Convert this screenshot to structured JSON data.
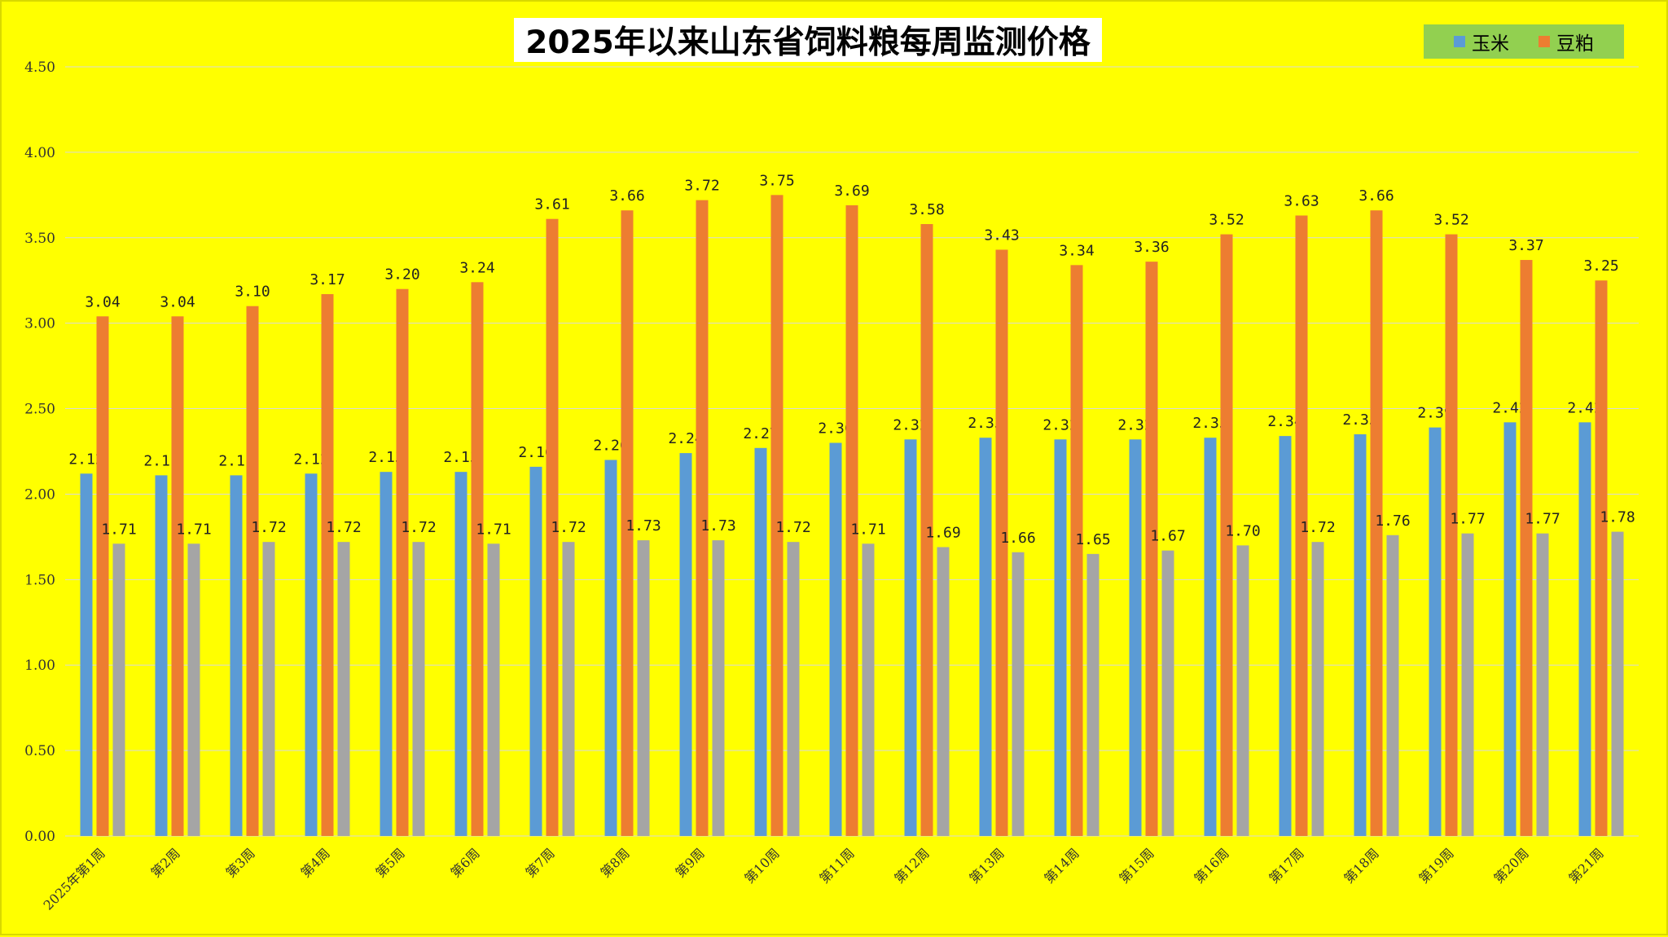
{
  "chart_data": {
    "type": "bar",
    "title": "2025年以来山东省饲料粮每周监测价格",
    "xlabel": "",
    "ylabel": "",
    "ylim": [
      0,
      4.5
    ],
    "yticks": [
      "0.00",
      "0.50",
      "1.00",
      "1.50",
      "2.00",
      "2.50",
      "3.00",
      "3.50",
      "4.00",
      "4.50"
    ],
    "grid": true,
    "legend_position": "top-right",
    "categories": [
      "2025年第1周",
      "第2周",
      "第3周",
      "第4周",
      "第5周",
      "第6周",
      "第7周",
      "第8周",
      "第9周",
      "第10周",
      "第11周",
      "第12周",
      "第13周",
      "第14周",
      "第15周",
      "第16周",
      "第17周",
      "第18周",
      "第19周",
      "第20周",
      "第21周"
    ],
    "series": [
      {
        "name": "玉米",
        "color": "#5b9bd5",
        "values": [
          2.12,
          2.11,
          2.11,
          2.12,
          2.13,
          2.13,
          2.16,
          2.2,
          2.24,
          2.27,
          2.3,
          2.32,
          2.33,
          2.32,
          2.32,
          2.33,
          2.34,
          2.35,
          2.39,
          2.42,
          2.42
        ]
      },
      {
        "name": "豆粕",
        "color": "#ed7d31",
        "values": [
          3.04,
          3.04,
          3.1,
          3.17,
          3.2,
          3.24,
          3.61,
          3.66,
          3.72,
          3.75,
          3.69,
          3.58,
          3.43,
          3.34,
          3.36,
          3.52,
          3.63,
          3.66,
          3.52,
          3.37,
          3.25
        ]
      },
      {
        "color": "#a5a5a5",
        "values": [
          1.71,
          1.71,
          1.72,
          1.72,
          1.72,
          1.71,
          1.72,
          1.73,
          1.73,
          1.72,
          1.71,
          1.69,
          1.66,
          1.65,
          1.67,
          1.7,
          1.72,
          1.76,
          1.77,
          1.77,
          1.78
        ]
      }
    ]
  }
}
